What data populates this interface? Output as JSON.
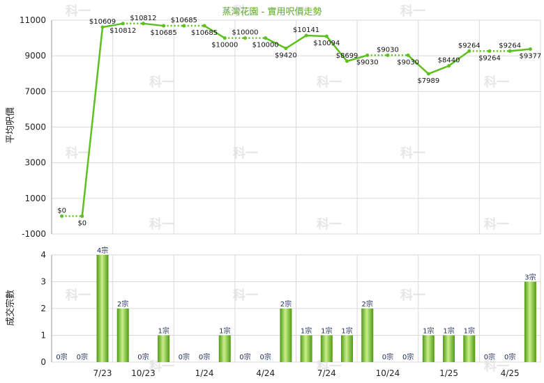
{
  "title": "蒸灣花園 - 實用呎價走勢",
  "watermark": "科一",
  "colors": {
    "line": "#5cc01f",
    "bar_dark": "#4e9a14",
    "bar_light": "#c9ef8a",
    "grid": "#d9d9d9",
    "title": "#5aaa1e"
  },
  "chart_data": [
    {
      "type": "line",
      "ylabel": "平均呎價",
      "ylim": [
        -1000,
        11000
      ],
      "yticks": [
        11000,
        9000,
        7000,
        5000,
        3000,
        1000,
        -1000
      ],
      "grid": true,
      "x": [
        0,
        1,
        2,
        3,
        4,
        5,
        6,
        7,
        8,
        9,
        10,
        11,
        12,
        13,
        14,
        15,
        16,
        17,
        18,
        19,
        20,
        21,
        22,
        23
      ],
      "values": [
        0,
        0,
        10609,
        10812,
        10812,
        10685,
        10685,
        10685,
        10000,
        10000,
        10000,
        9420,
        10141,
        10094,
        8699,
        9030,
        9030,
        9030,
        7989,
        8440,
        9264,
        9264,
        9264,
        9377
      ],
      "interpolated": [
        true,
        true,
        false,
        false,
        true,
        false,
        true,
        true,
        false,
        true,
        true,
        false,
        false,
        false,
        false,
        false,
        true,
        true,
        false,
        false,
        false,
        true,
        true,
        false
      ],
      "labels": [
        "$0",
        "$0",
        "$10609",
        "$10812",
        "$10812",
        "$10685",
        "$10685",
        "$10685",
        "$10000",
        "$10000",
        "$10000",
        "$9420",
        "$10141",
        "$10094",
        "$8699",
        "$9030",
        "$9030",
        "$9030",
        "$7989",
        "$8440",
        "$9264",
        "$9264",
        "$9264",
        "$9377"
      ],
      "label_pos": [
        "above",
        "below",
        "above",
        "below",
        "above",
        "below",
        "above",
        "below",
        "below",
        "above",
        "below",
        "below",
        "above",
        "below",
        "above",
        "below",
        "above",
        "below",
        "below",
        "above",
        "above",
        "below",
        "above",
        "below"
      ]
    },
    {
      "type": "bar",
      "ylabel": "成交宗數",
      "ylim": [
        0,
        4
      ],
      "yticks": [
        4,
        3,
        2,
        1,
        0
      ],
      "grid": true,
      "categories": [
        "",
        "",
        "7/23",
        "",
        "10/23",
        "",
        "",
        "1/24",
        "",
        "",
        "4/24",
        "",
        "",
        "7/24",
        "",
        "",
        "10/24",
        "",
        "",
        "1/25",
        "",
        "",
        "4/25",
        ""
      ],
      "values": [
        0,
        0,
        4,
        2,
        0,
        1,
        0,
        0,
        1,
        0,
        0,
        2,
        1,
        1,
        1,
        2,
        0,
        0,
        1,
        1,
        1,
        0,
        0,
        3
      ],
      "labels": [
        "0宗",
        "0宗",
        "4宗",
        "2宗",
        "0宗",
        "1宗",
        "0宗",
        "0宗",
        "1宗",
        "0宗",
        "0宗",
        "2宗",
        "1宗",
        "1宗",
        "1宗",
        "2宗",
        "0宗",
        "0宗",
        "1宗",
        "1宗",
        "1宗",
        "0宗",
        "0宗",
        "3宗"
      ],
      "xtick_labels": [
        "7/23",
        "10/23",
        "1/24",
        "4/24",
        "7/24",
        "10/24",
        "1/25",
        "4/25"
      ]
    }
  ]
}
